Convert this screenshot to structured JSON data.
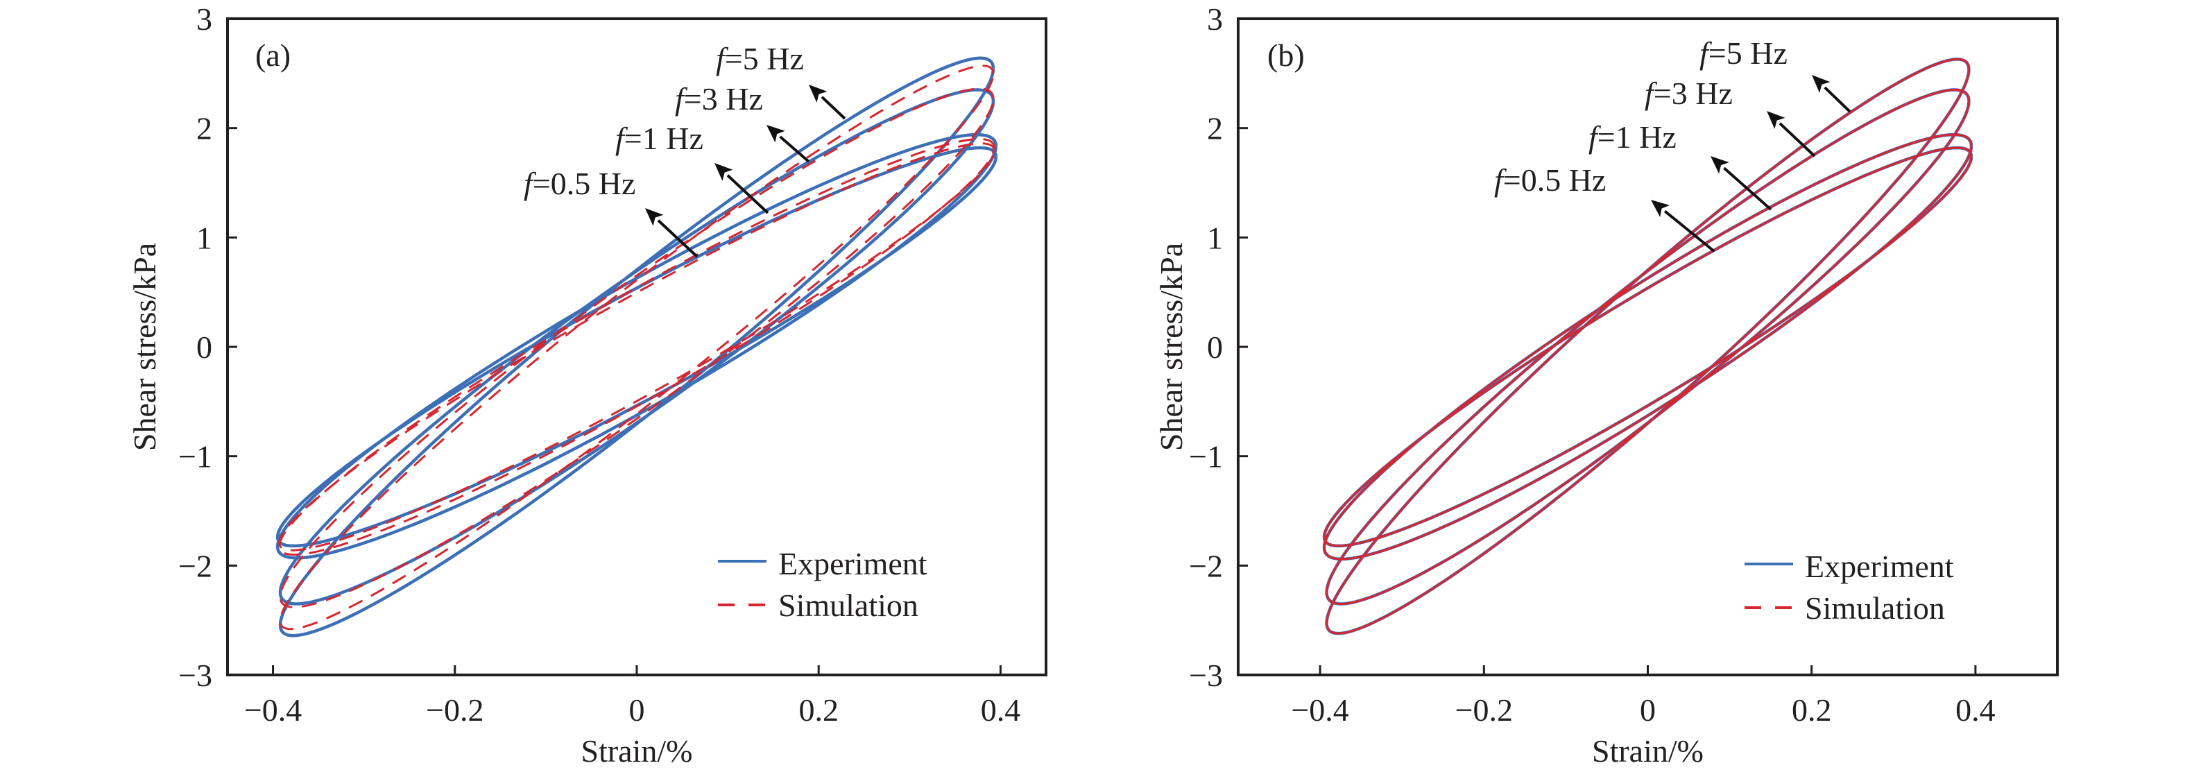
{
  "chart_data": [
    {
      "type": "line",
      "panel_label": "(a)",
      "xlabel": "Strain/%",
      "ylabel": "Shear stress/kPa",
      "xlim": [
        -0.45,
        0.45
      ],
      "ylim": [
        -3,
        3
      ],
      "xticks": [
        -0.4,
        -0.2,
        0,
        0.2,
        0.4
      ],
      "xtick_labels": [
        "−0.4",
        "−0.2",
        "0",
        "0.2",
        "0.4"
      ],
      "yticks": [
        -3,
        -2,
        -1,
        0,
        1,
        2,
        3
      ],
      "ytick_labels": [
        "−3",
        "−2",
        "−1",
        "0",
        "1",
        "2",
        "3"
      ],
      "grid": false,
      "legend": {
        "placement": "lower-right",
        "entries": [
          {
            "label": "Experiment",
            "color": "#3c6fb6",
            "style": "solid"
          },
          {
            "label": "Simulation",
            "color": "#d7262f",
            "style": "dashed"
          }
        ]
      },
      "annotations": [
        {
          "text_italic": "f",
          "text": "=5 Hz",
          "points_to": [
            0.23,
            1.95
          ]
        },
        {
          "text_italic": "f",
          "text": "=3 Hz",
          "points_to": [
            0.18,
            1.7
          ]
        },
        {
          "text_italic": "f",
          "text": "=1 Hz",
          "points_to": [
            0.14,
            1.22
          ]
        },
        {
          "text_italic": "f",
          "text": "=0.5 Hz",
          "points_to": [
            0.07,
            0.82
          ]
        }
      ],
      "series": [
        {
          "name": "Experiment",
          "frequency": "5 Hz",
          "strain_amplitude": 0.392,
          "stress_peak": 2.64,
          "stress_min": -2.64,
          "phase_rad": 0.27
        },
        {
          "name": "Experiment",
          "frequency": "3 Hz",
          "strain_amplitude": 0.392,
          "stress_peak": 2.35,
          "stress_min": -2.35,
          "phase_rad": 0.3
        },
        {
          "name": "Experiment",
          "frequency": "1 Hz",
          "strain_amplitude": 0.395,
          "stress_peak": 1.94,
          "stress_min": -1.93,
          "phase_rad": 0.33
        },
        {
          "name": "Experiment",
          "frequency": "0.5 Hz",
          "strain_amplitude": 0.395,
          "stress_peak": 1.82,
          "stress_min": -1.82,
          "phase_rad": 0.3
        },
        {
          "name": "Simulation",
          "frequency": "5 Hz",
          "strain_amplitude": 0.392,
          "stress_peak": 2.57,
          "stress_min": -2.58,
          "phase_rad": 0.24
        },
        {
          "name": "Simulation",
          "frequency": "3 Hz",
          "strain_amplitude": 0.392,
          "stress_peak": 2.36,
          "stress_min": -2.38,
          "phase_rad": 0.28
        },
        {
          "name": "Simulation",
          "frequency": "1 Hz",
          "strain_amplitude": 0.393,
          "stress_peak": 1.9,
          "stress_min": -1.9,
          "phase_rad": 0.29
        },
        {
          "name": "Simulation",
          "frequency": "0.5 Hz",
          "strain_amplitude": 0.393,
          "stress_peak": 1.86,
          "stress_min": -1.86,
          "phase_rad": 0.27
        }
      ]
    },
    {
      "type": "line",
      "panel_label": "(b)",
      "xlabel": "Strain/%",
      "ylabel": "Shear stress/kPa",
      "xlim": [
        -0.5,
        0.5
      ],
      "ylim": [
        -3,
        3
      ],
      "xticks": [
        -0.4,
        -0.2,
        0,
        0.2,
        0.4
      ],
      "xtick_labels": [
        "−0.4",
        "−0.2",
        "0",
        "0.2",
        "0.4"
      ],
      "yticks": [
        -3,
        -2,
        -1,
        0,
        1,
        2,
        3
      ],
      "ytick_labels": [
        "−3",
        "−2",
        "−1",
        "0",
        "1",
        "2",
        "3"
      ],
      "grid": false,
      "legend": {
        "placement": "lower-right",
        "entries": [
          {
            "label": "Experiment",
            "color": "#3c6fb6",
            "style": "solid"
          },
          {
            "label": "Simulation",
            "color": "#d7262f",
            "style": "dashed"
          }
        ]
      },
      "annotations": [
        {
          "text_italic": "f",
          "text": "=5 Hz",
          "points_to": [
            0.25,
            1.96
          ]
        },
        {
          "text_italic": "f",
          "text": "=3 Hz",
          "points_to": [
            0.2,
            1.7
          ]
        },
        {
          "text_italic": "f",
          "text": "=1 Hz",
          "points_to": [
            0.15,
            1.23
          ]
        },
        {
          "text_italic": "f",
          "text": "=0.5 Hz",
          "points_to": [
            0.08,
            0.85
          ]
        }
      ],
      "series": [
        {
          "name": "Experiment",
          "frequency": "5 Hz",
          "strain_amplitude": 0.392,
          "stress_peak": 2.63,
          "stress_min": -2.62,
          "phase_rad": 0.27
        },
        {
          "name": "Experiment",
          "frequency": "3 Hz",
          "strain_amplitude": 0.392,
          "stress_peak": 2.35,
          "stress_min": -2.35,
          "phase_rad": 0.3
        },
        {
          "name": "Experiment",
          "frequency": "1 Hz",
          "strain_amplitude": 0.395,
          "stress_peak": 1.94,
          "stress_min": -1.94,
          "phase_rad": 0.33
        },
        {
          "name": "Experiment",
          "frequency": "0.5 Hz",
          "strain_amplitude": 0.395,
          "stress_peak": 1.82,
          "stress_min": -1.82,
          "phase_rad": 0.3
        },
        {
          "name": "Simulation",
          "frequency": "5 Hz",
          "strain_amplitude": 0.392,
          "stress_peak": 2.63,
          "stress_min": -2.62,
          "phase_rad": 0.27
        },
        {
          "name": "Simulation",
          "frequency": "3 Hz",
          "strain_amplitude": 0.392,
          "stress_peak": 2.35,
          "stress_min": -2.35,
          "phase_rad": 0.3
        },
        {
          "name": "Simulation",
          "frequency": "1 Hz",
          "strain_amplitude": 0.395,
          "stress_peak": 1.94,
          "stress_min": -1.94,
          "phase_rad": 0.33
        },
        {
          "name": "Simulation",
          "frequency": "0.5 Hz",
          "strain_amplitude": 0.395,
          "stress_peak": 1.82,
          "stress_min": -1.82,
          "phase_rad": 0.3
        }
      ]
    }
  ],
  "colors": {
    "experiment": "#3c6fb6",
    "simulation": "#d7262f",
    "axis": "#231f20",
    "arrow": "#111111"
  }
}
